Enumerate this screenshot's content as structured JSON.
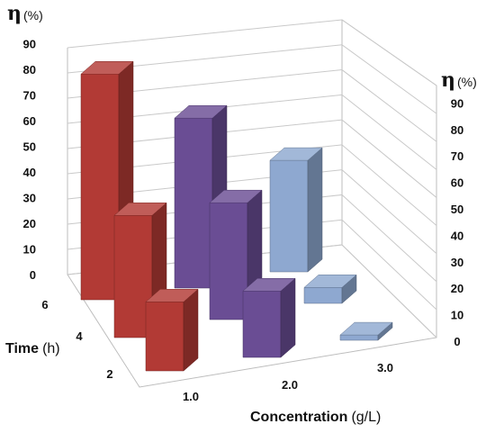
{
  "chart_data": {
    "type": "bar3d",
    "y_label_symbol": "η",
    "y_label_unit": "(%)",
    "x_axis": {
      "label": "Concentration",
      "unit": "(g/L)",
      "categories": [
        "1.0",
        "2.0",
        "3.0"
      ]
    },
    "z_axis": {
      "label": "Time",
      "unit": "(h)",
      "categories": [
        "6",
        "4",
        "2"
      ]
    },
    "left_ticks": [
      "0",
      "10",
      "20",
      "30",
      "40",
      "50",
      "60",
      "70",
      "80",
      "90"
    ],
    "right_ticks": [
      "0",
      "10",
      "20",
      "30",
      "40",
      "50",
      "60",
      "70",
      "80",
      "90"
    ],
    "ylim": [
      0,
      90
    ],
    "series": [
      {
        "x": "1.0",
        "color": "#b23a35",
        "values": {
          "6": 85,
          "4": 46,
          "2": 26
        }
      },
      {
        "x": "2.0",
        "color": "#6a4d94",
        "values": {
          "6": 64,
          "4": 44,
          "2": 25
        }
      },
      {
        "x": "3.0",
        "color": "#8ea8d0",
        "values": {
          "6": 42,
          "4": 6,
          "2": 2
        }
      }
    ]
  }
}
